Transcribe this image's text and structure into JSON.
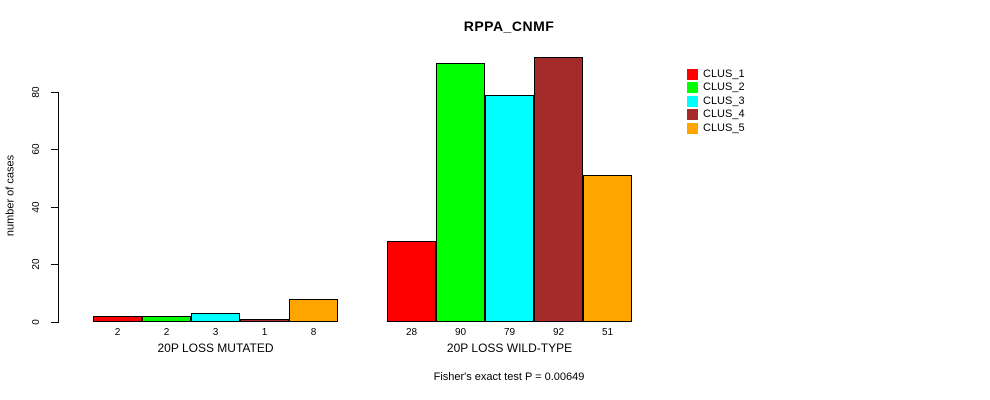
{
  "chart_data": {
    "type": "bar",
    "title": "RPPA_CNMF",
    "xlabel": "",
    "ylabel": "number of cases",
    "ylim": [
      0,
      80
    ],
    "yticks": [
      0,
      20,
      40,
      60,
      80
    ],
    "grid": false,
    "legend_position": "right",
    "categories": [
      "20P LOSS MUTATED",
      "20P LOSS WILD-TYPE"
    ],
    "series": [
      {
        "name": "CLUS_1",
        "color": "#FF0000",
        "values": [
          2,
          28
        ]
      },
      {
        "name": "CLUS_2",
        "color": "#00FF00",
        "values": [
          2,
          90
        ]
      },
      {
        "name": "CLUS_3",
        "color": "#00FFFF",
        "values": [
          3,
          79
        ]
      },
      {
        "name": "CLUS_4",
        "color": "#A52A2A",
        "values": [
          1,
          92
        ]
      },
      {
        "name": "CLUS_5",
        "color": "#FFA500",
        "values": [
          8,
          51
        ]
      }
    ],
    "bar_value_labels": [
      [
        "2",
        "2",
        "3",
        "1",
        "8"
      ],
      [
        "28",
        "90",
        "79",
        "92",
        "51"
      ]
    ],
    "annotation": "Fisher's exact test P = 0.00649"
  }
}
